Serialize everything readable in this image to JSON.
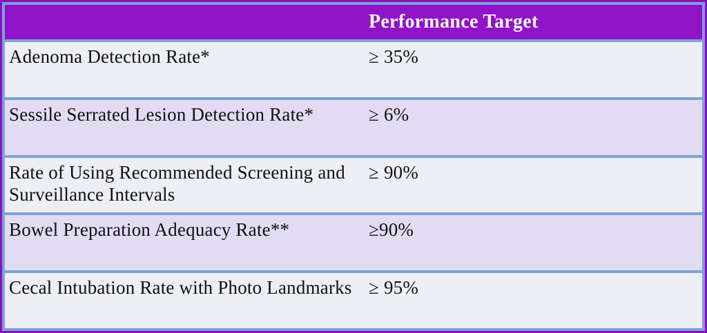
{
  "theme": {
    "frame_purple": "#8a10bd",
    "header_purple": "#9113c7",
    "border_blue": "#7ba2d4",
    "row_gray": "#edeff5",
    "row_lavender": "#e2dcf3",
    "header_text": "#ffffff",
    "body_text": "#101010"
  },
  "table": {
    "header": {
      "col1": "",
      "col2": "Performance Target"
    },
    "rows": [
      {
        "metric": "Adenoma Detection Rate*",
        "target": "≥ 35%"
      },
      {
        "metric": "Sessile Serrated Lesion Detection Rate*",
        "target": "≥ 6%"
      },
      {
        "metric": "Rate of Using Recommended Screening and Surveillance Intervals",
        "target": "≥ 90%"
      },
      {
        "metric": "Bowel Preparation Adequacy Rate**",
        "target": "≥90%"
      },
      {
        "metric": "Cecal Intubation Rate with Photo Landmarks",
        "target": "≥ 95%"
      }
    ]
  }
}
